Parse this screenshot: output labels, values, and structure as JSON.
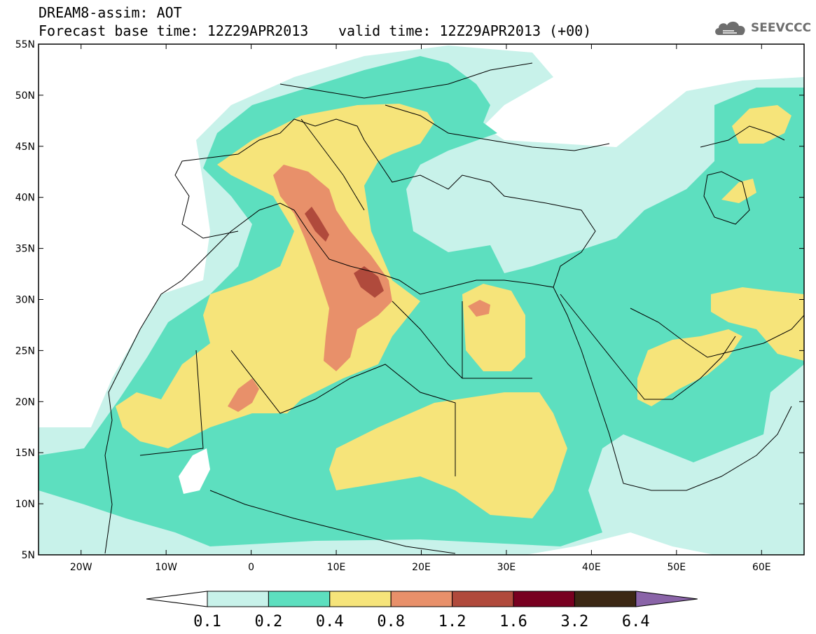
{
  "title": {
    "line1": "DREAM8-assim: AOT",
    "line2_base": "Forecast base time: 12Z29APR2013",
    "line2_valid": "valid time: 12Z29APR2013 (+00)"
  },
  "logo": {
    "text": "SEEVCCC",
    "icon": "cloud-icon",
    "color": "#6e6e6e"
  },
  "map": {
    "lon_range": [
      -25,
      65
    ],
    "lat_range": [
      5,
      55
    ],
    "lat_ticks": [
      "5N",
      "10N",
      "15N",
      "20N",
      "25N",
      "30N",
      "35N",
      "40N",
      "45N",
      "50N",
      "55N"
    ],
    "lon_ticks": [
      "20W",
      "10W",
      "0",
      "10E",
      "20E",
      "30E",
      "40E",
      "50E",
      "60E"
    ],
    "background": "#ffffff"
  },
  "colorbar": {
    "levels": [
      "0.1",
      "0.2",
      "0.4",
      "0.8",
      "1.2",
      "1.6",
      "3.2",
      "6.4"
    ],
    "colors": {
      "under": "#ffffff",
      "c1": "#c8f2ea",
      "c2": "#5ddfbf",
      "c3": "#f6e47a",
      "c4": "#e8906a",
      "c5": "#b04a3c",
      "c6": "#780020",
      "c7": "#3c2814",
      "over": "#8a64a8"
    }
  }
}
